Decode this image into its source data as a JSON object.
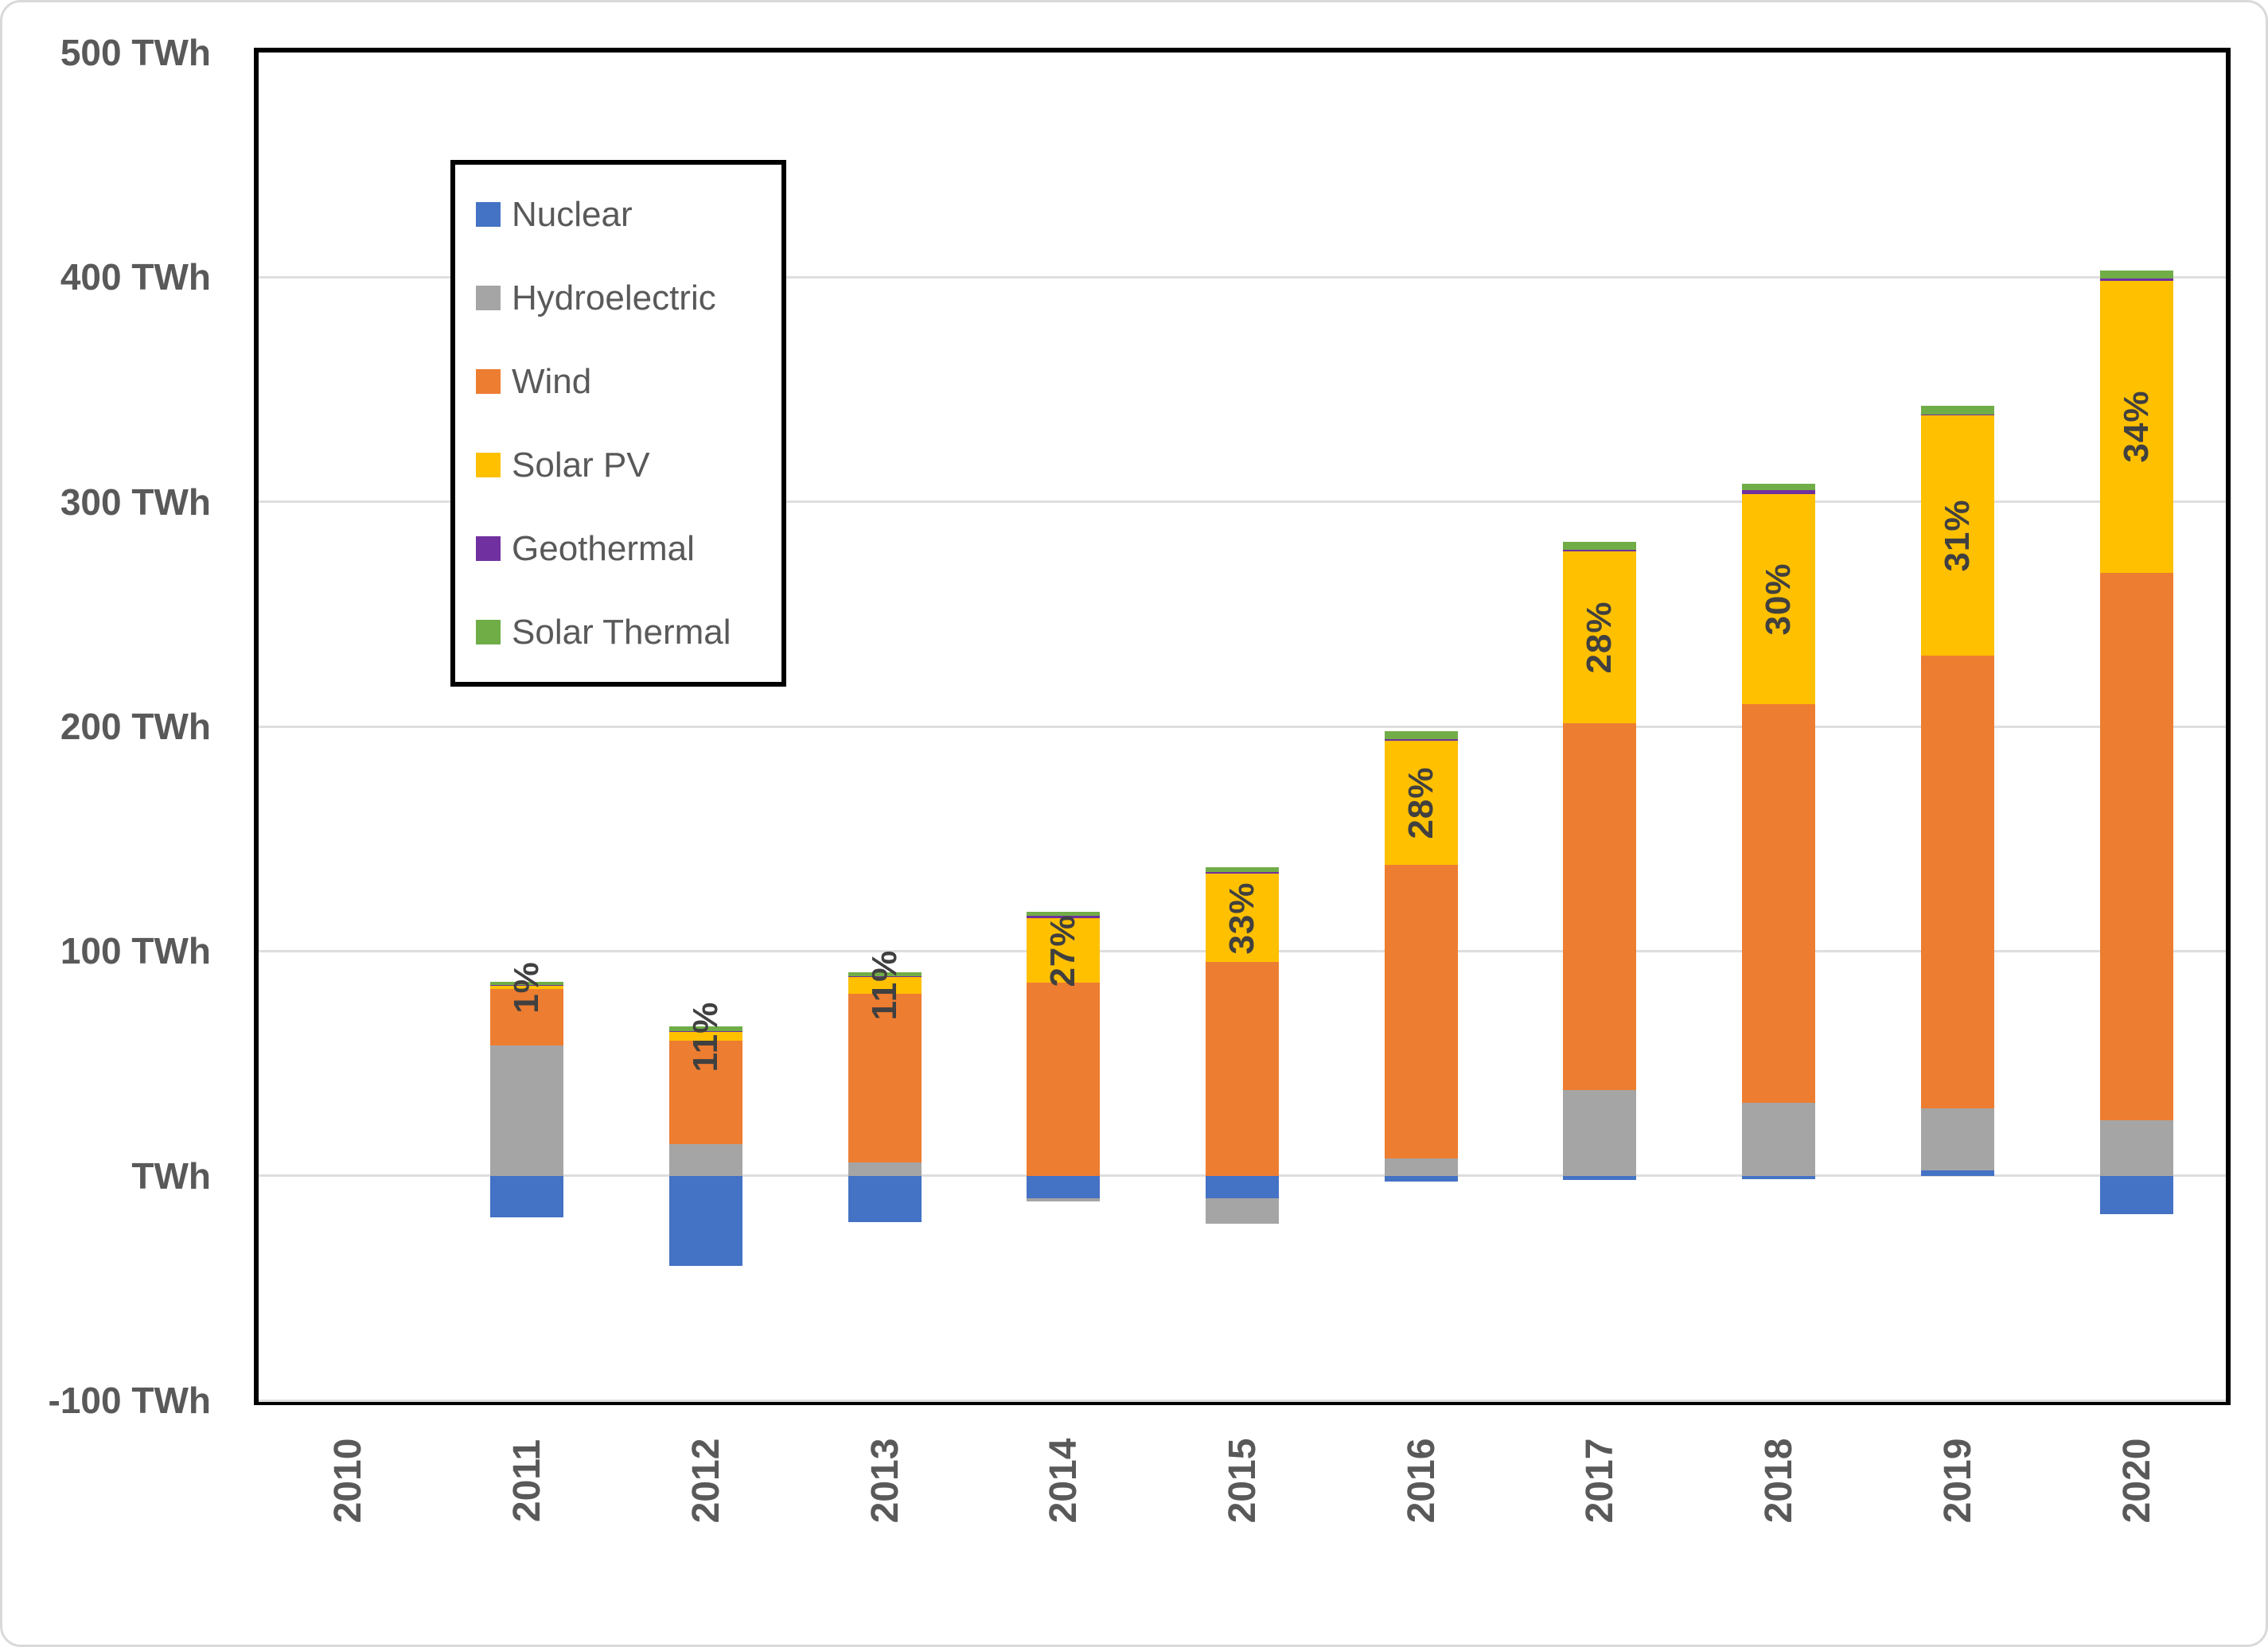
{
  "chart_data": {
    "type": "bar",
    "stacked": true,
    "unit": "TWh",
    "categories": [
      "2010",
      "2011",
      "2012",
      "2013",
      "2014",
      "2015",
      "2016",
      "2017",
      "2018",
      "2019",
      "2020"
    ],
    "series": [
      {
        "name": "Nuclear",
        "color": "#4472C4",
        "values": [
          0,
          -18.5,
          -40,
          -20.5,
          -10,
          -10,
          -2.5,
          -2,
          -1.5,
          2.5,
          -17
        ]
      },
      {
        "name": "Hydroelectric",
        "color": "#A5A5A5",
        "values": [
          0,
          58,
          14,
          6,
          -1.5,
          -11.5,
          7.5,
          38,
          32.5,
          27.5,
          24.5
        ]
      },
      {
        "name": "Wind",
        "color": "#ED7D31",
        "values": [
          0,
          25,
          46,
          75,
          86,
          95,
          131,
          163.5,
          177.5,
          201.5,
          244
        ]
      },
      {
        "name": "Solar PV",
        "color": "#FFC000",
        "values": [
          0,
          1.5,
          4,
          7.5,
          28.5,
          39.5,
          55,
          76.5,
          93.5,
          107,
          130
        ]
      },
      {
        "name": "Geothermal",
        "color": "#7030A0",
        "values": [
          0,
          0.4,
          0.5,
          0.4,
          1.1,
          0.7,
          1.0,
          0.7,
          1.8,
          0.5,
          1.0
        ]
      },
      {
        "name": "Solar Thermal",
        "color": "#70AD47",
        "values": [
          0,
          1.3,
          1.8,
          1.5,
          1.9,
          2.1,
          3.5,
          3.5,
          2.8,
          3.9,
          3.5
        ]
      }
    ],
    "bar_labels": [
      "",
      "1%",
      "11%",
      "11%",
      "27%",
      "33%",
      "28%",
      "28%",
      "30%",
      "31%",
      "34%"
    ],
    "bar_label_series": "Solar PV",
    "y_ticks": [
      {
        "value": 500,
        "label": "500 TWh"
      },
      {
        "value": 400,
        "label": "400 TWh"
      },
      {
        "value": 300,
        "label": "300 TWh"
      },
      {
        "value": 200,
        "label": "200 TWh"
      },
      {
        "value": 100,
        "label": "100 TWh"
      },
      {
        "value": 0,
        "label": "TWh"
      },
      {
        "value": -100,
        "label": "-100 TWh"
      }
    ],
    "ylim": [
      -100,
      500
    ],
    "grid": true,
    "legend_position": "upper-left-inside",
    "legend_items": [
      "Nuclear",
      "Hydroelectric",
      "Wind",
      "Solar PV",
      "Geothermal",
      "Solar Thermal"
    ]
  },
  "colors": {
    "frame": "#000000",
    "grid": "#dedede",
    "axis_text": "#595959",
    "bar_label_text": "#404040",
    "background": "#ffffff",
    "page_border": "#d9d9d9"
  }
}
